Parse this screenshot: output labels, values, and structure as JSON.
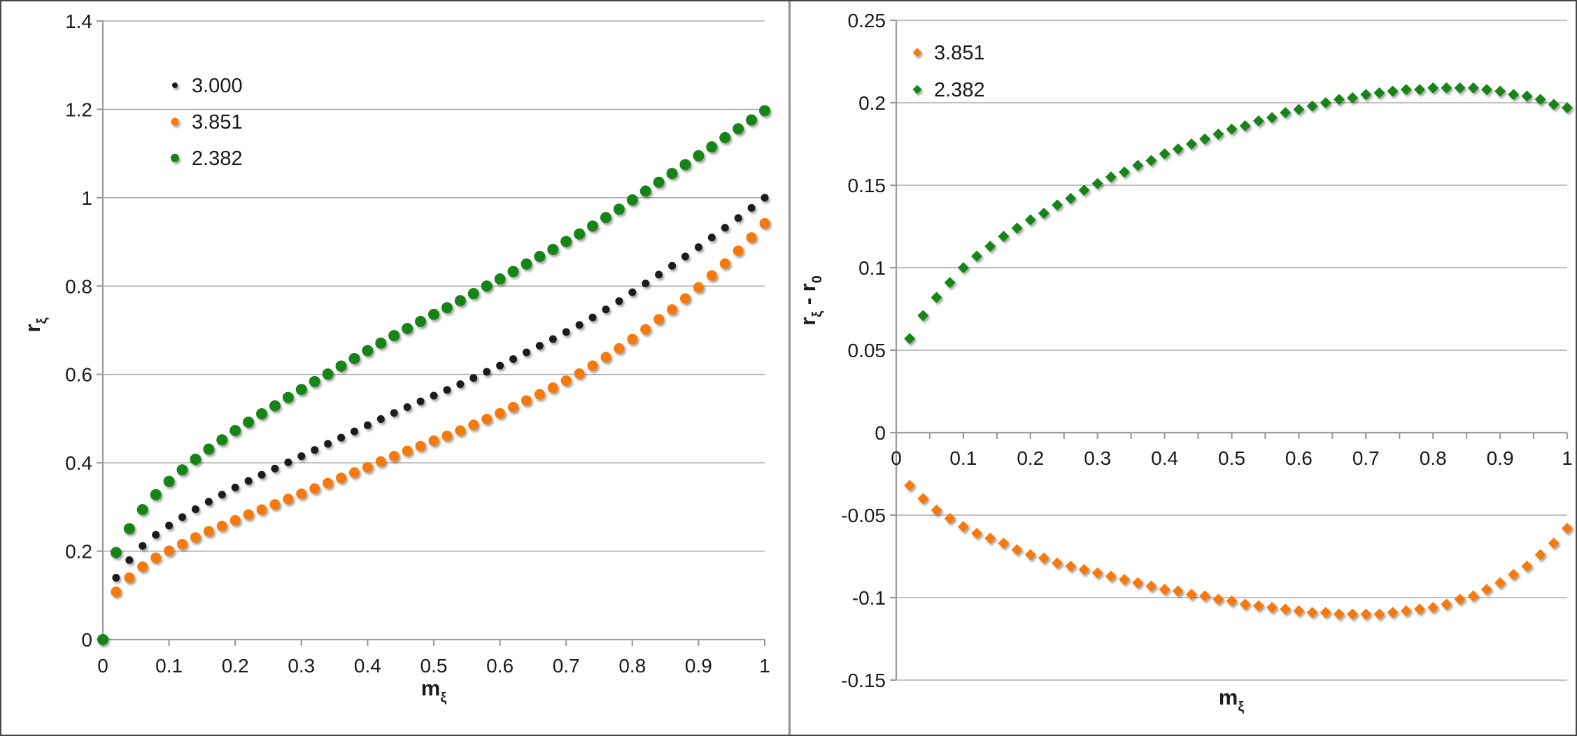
{
  "page": {
    "background": "#ffffff",
    "frame_color": "#474747",
    "divider_color": "#8f8f8f",
    "gridline_color": "#adadad",
    "axis_color": "#9c9c9c",
    "text_color": "#1a1a1a"
  },
  "chart_data": [
    {
      "type": "scatter",
      "title": "",
      "xlabel": "m_ξ",
      "ylabel": "r_ξ",
      "xlim": [
        0,
        1
      ],
      "ylim": [
        0,
        1.4
      ],
      "grid": "horizontal",
      "legend_position": "inside-top-left",
      "x_tick_labels": [
        "0",
        "0.1",
        "0.2",
        "0.3",
        "0.4",
        "0.5",
        "0.6",
        "0.7",
        "0.8",
        "0.9",
        "1"
      ],
      "y_tick_labels_top_down": [
        "1.4",
        "1.2",
        "1",
        "0.8",
        "0.6",
        "0.4",
        "0.2",
        "0"
      ],
      "x_minor_tick_step": null,
      "series": [
        {
          "name": "3.000",
          "color": "#1b1b1b",
          "marker": "circle",
          "radius": 5.5,
          "legend_radius": 4,
          "x": [
            0.02,
            0.04,
            0.06,
            0.08,
            0.1,
            0.12,
            0.14,
            0.16,
            0.18,
            0.2,
            0.22,
            0.24,
            0.26,
            0.28,
            0.3,
            0.32,
            0.34,
            0.36,
            0.38,
            0.4,
            0.42,
            0.44,
            0.46,
            0.48,
            0.5,
            0.52,
            0.54,
            0.56,
            0.58,
            0.6,
            0.62,
            0.64,
            0.66,
            0.68,
            0.7,
            0.72,
            0.74,
            0.76,
            0.78,
            0.8,
            0.82,
            0.84,
            0.86,
            0.88,
            0.9,
            0.92,
            0.94,
            0.96,
            0.98,
            1.0
          ],
          "y": [
            0.14,
            0.18,
            0.212,
            0.237,
            0.258,
            0.277,
            0.295,
            0.312,
            0.328,
            0.344,
            0.359,
            0.373,
            0.387,
            0.401,
            0.415,
            0.429,
            0.443,
            0.457,
            0.471,
            0.485,
            0.499,
            0.513,
            0.526,
            0.539,
            0.552,
            0.565,
            0.578,
            0.592,
            0.606,
            0.62,
            0.635,
            0.65,
            0.665,
            0.68,
            0.696,
            0.712,
            0.729,
            0.747,
            0.766,
            0.786,
            0.806,
            0.826,
            0.846,
            0.867,
            0.888,
            0.91,
            0.932,
            0.954,
            0.977,
            1.0
          ]
        },
        {
          "name": "3.851",
          "color": "#f5790f",
          "marker": "circle",
          "radius": 7.5,
          "legend_radius": 5.5,
          "x": [
            0.02,
            0.04,
            0.06,
            0.08,
            0.1,
            0.12,
            0.14,
            0.16,
            0.18,
            0.2,
            0.22,
            0.24,
            0.26,
            0.28,
            0.3,
            0.32,
            0.34,
            0.36,
            0.38,
            0.4,
            0.42,
            0.44,
            0.46,
            0.48,
            0.5,
            0.52,
            0.54,
            0.56,
            0.58,
            0.6,
            0.62,
            0.64,
            0.66,
            0.68,
            0.7,
            0.72,
            0.74,
            0.76,
            0.78,
            0.8,
            0.82,
            0.84,
            0.86,
            0.88,
            0.9,
            0.92,
            0.94,
            0.96,
            0.98,
            1.0
          ],
          "y": [
            0.108,
            0.14,
            0.165,
            0.185,
            0.201,
            0.216,
            0.231,
            0.245,
            0.257,
            0.27,
            0.283,
            0.294,
            0.306,
            0.318,
            0.33,
            0.342,
            0.354,
            0.366,
            0.378,
            0.39,
            0.403,
            0.415,
            0.427,
            0.438,
            0.45,
            0.461,
            0.473,
            0.486,
            0.499,
            0.512,
            0.526,
            0.541,
            0.555,
            0.57,
            0.586,
            0.602,
            0.62,
            0.639,
            0.659,
            0.68,
            0.702,
            0.725,
            0.747,
            0.772,
            0.797,
            0.824,
            0.851,
            0.88,
            0.91,
            0.942
          ]
        },
        {
          "name": "2.382",
          "color": "#188418",
          "marker": "circle",
          "radius": 8,
          "legend_radius": 6,
          "x": [
            0.0,
            0.02,
            0.04,
            0.06,
            0.08,
            0.1,
            0.12,
            0.14,
            0.16,
            0.18,
            0.2,
            0.22,
            0.24,
            0.26,
            0.28,
            0.3,
            0.32,
            0.34,
            0.36,
            0.38,
            0.4,
            0.42,
            0.44,
            0.46,
            0.48,
            0.5,
            0.52,
            0.54,
            0.56,
            0.58,
            0.6,
            0.62,
            0.64,
            0.66,
            0.68,
            0.7,
            0.72,
            0.74,
            0.76,
            0.78,
            0.8,
            0.82,
            0.84,
            0.86,
            0.88,
            0.9,
            0.92,
            0.94,
            0.96,
            0.98,
            1.0
          ],
          "y": [
            0.0,
            0.197,
            0.251,
            0.294,
            0.328,
            0.358,
            0.384,
            0.408,
            0.431,
            0.452,
            0.473,
            0.492,
            0.511,
            0.529,
            0.548,
            0.566,
            0.584,
            0.601,
            0.619,
            0.636,
            0.654,
            0.671,
            0.688,
            0.704,
            0.72,
            0.736,
            0.751,
            0.767,
            0.783,
            0.8,
            0.816,
            0.833,
            0.85,
            0.867,
            0.883,
            0.901,
            0.918,
            0.936,
            0.955,
            0.974,
            0.995,
            1.015,
            1.035,
            1.055,
            1.075,
            1.095,
            1.115,
            1.136,
            1.156,
            1.176,
            1.197
          ]
        }
      ]
    },
    {
      "type": "scatter",
      "title": "",
      "xlabel": "m_ξ",
      "ylabel": "r_ξ - r_0",
      "xlim": [
        0,
        1
      ],
      "ylim": [
        -0.15,
        0.25
      ],
      "grid": "horizontal",
      "legend_position": "inside-top-left",
      "x_tick_labels": [
        "0",
        "0.1",
        "0.2",
        "0.3",
        "0.4",
        "0.5",
        "0.6",
        "0.7",
        "0.8",
        "0.9",
        "1"
      ],
      "y_tick_labels_top_down": [
        "0.25",
        "0.2",
        "0.15",
        "0.1",
        "0.05",
        "0",
        "-0.05",
        "-0.1",
        "-0.15"
      ],
      "x_minor_tick_step": 0.05,
      "series": [
        {
          "name": "3.851",
          "color": "#f5790f",
          "marker": "diamond",
          "radius": 8,
          "legend_radius": 6.5,
          "x": [
            0.02,
            0.04,
            0.06,
            0.08,
            0.1,
            0.12,
            0.14,
            0.16,
            0.18,
            0.2,
            0.22,
            0.24,
            0.26,
            0.28,
            0.3,
            0.32,
            0.34,
            0.36,
            0.38,
            0.4,
            0.42,
            0.44,
            0.46,
            0.48,
            0.5,
            0.52,
            0.54,
            0.56,
            0.58,
            0.6,
            0.62,
            0.64,
            0.66,
            0.68,
            0.7,
            0.72,
            0.74,
            0.76,
            0.78,
            0.8,
            0.82,
            0.84,
            0.86,
            0.88,
            0.9,
            0.92,
            0.94,
            0.96,
            0.98,
            1.0
          ],
          "y": [
            -0.032,
            -0.04,
            -0.047,
            -0.052,
            -0.057,
            -0.061,
            -0.064,
            -0.067,
            -0.071,
            -0.074,
            -0.076,
            -0.079,
            -0.081,
            -0.083,
            -0.085,
            -0.087,
            -0.089,
            -0.091,
            -0.093,
            -0.095,
            -0.096,
            -0.098,
            -0.099,
            -0.101,
            -0.102,
            -0.104,
            -0.105,
            -0.106,
            -0.107,
            -0.108,
            -0.109,
            -0.109,
            -0.11,
            -0.11,
            -0.11,
            -0.11,
            -0.109,
            -0.108,
            -0.107,
            -0.106,
            -0.104,
            -0.101,
            -0.099,
            -0.095,
            -0.091,
            -0.086,
            -0.081,
            -0.074,
            -0.067,
            -0.058
          ]
        },
        {
          "name": "2.382",
          "color": "#188418",
          "marker": "diamond",
          "radius": 8,
          "legend_radius": 6.5,
          "x": [
            0.02,
            0.04,
            0.06,
            0.08,
            0.1,
            0.12,
            0.14,
            0.16,
            0.18,
            0.2,
            0.22,
            0.24,
            0.26,
            0.28,
            0.3,
            0.32,
            0.34,
            0.36,
            0.38,
            0.4,
            0.42,
            0.44,
            0.46,
            0.48,
            0.5,
            0.52,
            0.54,
            0.56,
            0.58,
            0.6,
            0.62,
            0.64,
            0.66,
            0.68,
            0.7,
            0.72,
            0.74,
            0.76,
            0.78,
            0.8,
            0.82,
            0.84,
            0.86,
            0.88,
            0.9,
            0.92,
            0.94,
            0.96,
            0.98,
            1.0
          ],
          "y": [
            0.057,
            0.071,
            0.082,
            0.091,
            0.1,
            0.107,
            0.113,
            0.119,
            0.124,
            0.129,
            0.133,
            0.138,
            0.142,
            0.147,
            0.151,
            0.155,
            0.158,
            0.162,
            0.165,
            0.169,
            0.172,
            0.175,
            0.178,
            0.181,
            0.184,
            0.186,
            0.189,
            0.191,
            0.194,
            0.196,
            0.198,
            0.2,
            0.202,
            0.203,
            0.205,
            0.206,
            0.207,
            0.208,
            0.208,
            0.209,
            0.209,
            0.209,
            0.209,
            0.208,
            0.207,
            0.205,
            0.204,
            0.202,
            0.199,
            0.197
          ]
        }
      ]
    }
  ]
}
